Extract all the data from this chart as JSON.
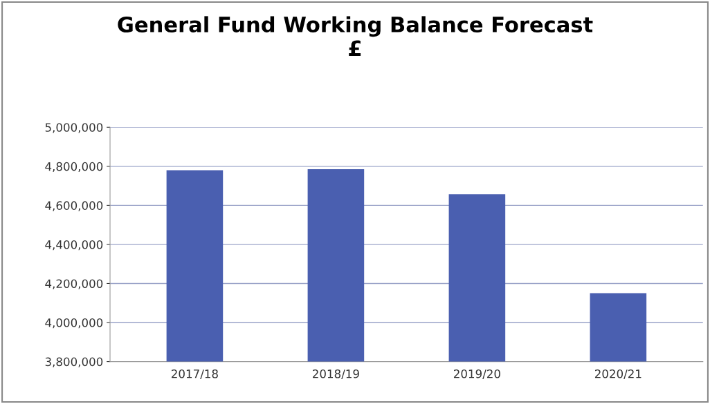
{
  "chart_data": {
    "type": "bar",
    "title": "General Fund Working Balance Forecast\n£",
    "categories": [
      "2017/18",
      "2018/19",
      "2019/20",
      "2020/21"
    ],
    "values": [
      4780000,
      4785000,
      4657000,
      4150000
    ],
    "color": "#4a5fb0",
    "ylim": [
      3800000,
      5000000
    ],
    "yticks": [
      {
        "value": 3800000,
        "label": "3,800,000"
      },
      {
        "value": 4000000,
        "label": "4,000,000"
      },
      {
        "value": 4200000,
        "label": "4,200,000"
      },
      {
        "value": 4400000,
        "label": "4,400,000"
      },
      {
        "value": 4600000,
        "label": "4,600,000"
      },
      {
        "value": 4800000,
        "label": "4,800,000"
      },
      {
        "value": 5000000,
        "label": "5,000,000"
      }
    ],
    "grid": "y",
    "legend": false
  }
}
